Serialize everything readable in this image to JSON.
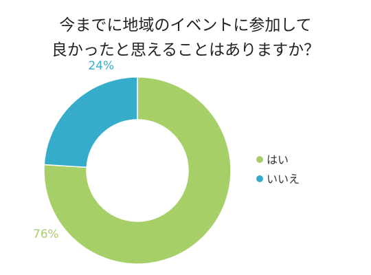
{
  "chart_data": {
    "type": "pie",
    "variant": "donut",
    "title": "今までに地域のイベントに参加して良かったと思えることはありますか？",
    "title_lines": [
      "今までに地域のイベントに参加して",
      "良かったと思えることはありますか？"
    ],
    "categories": [
      "はい",
      "いいえ"
    ],
    "values": [
      76,
      24
    ],
    "value_labels": [
      "76%",
      "24%"
    ],
    "colors": [
      "#a7cf68",
      "#35acc9"
    ],
    "legend_position": "right",
    "start": "top",
    "direction": "clockwise"
  }
}
